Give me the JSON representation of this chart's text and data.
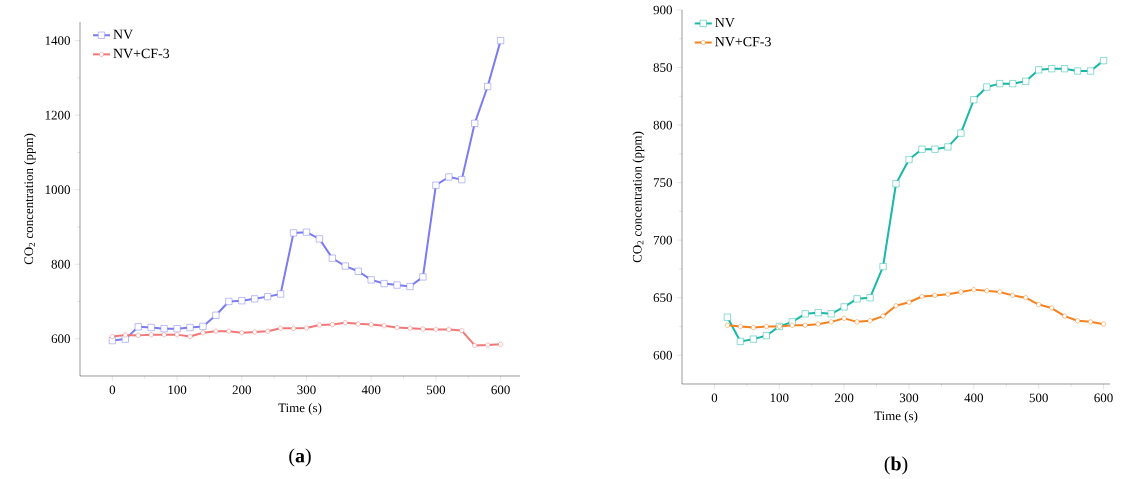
{
  "chart_data": [
    {
      "type": "line",
      "xlabel": "Time (s)",
      "ylabel": "CO$_{2}$ concentration (ppm)",
      "annotations": [
        "(**a**)"
      ],
      "x": [
        0,
        20,
        40,
        60,
        80,
        100,
        120,
        140,
        160,
        180,
        200,
        220,
        240,
        260,
        280,
        300,
        320,
        340,
        360,
        380,
        400,
        420,
        440,
        460,
        480,
        500,
        520,
        540,
        560,
        580,
        600
      ],
      "xlim": [
        -50,
        630
      ],
      "xticks": [
        0,
        100,
        200,
        300,
        400,
        500,
        600
      ],
      "ylim": [
        500,
        1450
      ],
      "yticks": [
        600,
        800,
        1000,
        1200,
        1400
      ],
      "legend": "top left",
      "grid": false,
      "line_style": "solid",
      "series": [
        {
          "name": "NV",
          "color": "#7b7bf2",
          "marker": "square",
          "values": [
            595,
            599,
            632,
            630,
            627,
            627,
            630,
            633,
            663,
            700,
            702,
            707,
            713,
            720,
            884,
            886,
            868,
            816,
            795,
            781,
            758,
            748,
            744,
            740,
            766,
            1012,
            1034,
            1027,
            1178,
            1277,
            1400
          ]
        },
        {
          "name": "NV+CF-3",
          "color": "#f27878",
          "marker": "circle",
          "values": [
            606,
            610,
            609,
            611,
            611,
            611,
            606,
            616,
            620,
            620,
            616,
            618,
            620,
            628,
            628,
            629,
            637,
            638,
            643,
            640,
            638,
            635,
            630,
            628,
            626,
            625,
            625,
            622,
            582,
            583,
            585
          ]
        }
      ]
    },
    {
      "type": "line",
      "xlabel": "Time (s)",
      "ylabel": "CO$_{2}$ concentration (ppm)",
      "annotations": [
        "(**b**)"
      ],
      "x": [
        20,
        40,
        60,
        80,
        100,
        120,
        140,
        160,
        180,
        200,
        220,
        240,
        260,
        280,
        300,
        320,
        340,
        360,
        380,
        400,
        420,
        440,
        460,
        480,
        500,
        520,
        540,
        560,
        580,
        600
      ],
      "xlim": [
        -50,
        610
      ],
      "xticks": [
        0,
        100,
        200,
        300,
        400,
        500,
        600
      ],
      "ylim": [
        575,
        900
      ],
      "yticks": [
        600,
        650,
        700,
        750,
        800,
        850,
        900
      ],
      "legend": "top left",
      "grid": false,
      "line_style": "solid",
      "series": [
        {
          "name": "NV",
          "color": "#1ab8a6",
          "marker": "square",
          "values": [
            633,
            612,
            614,
            617,
            625,
            629,
            636,
            637,
            636,
            642,
            649,
            650,
            677,
            749,
            770,
            779,
            779,
            781,
            793,
            822,
            833,
            836,
            836,
            838,
            848,
            849,
            849,
            847,
            847,
            856
          ]
        },
        {
          "name": "NV+CF-3",
          "color": "#f5821f",
          "marker": "circle",
          "values": [
            626,
            625,
            624,
            625,
            625,
            626,
            626,
            627,
            629,
            632,
            629,
            630,
            634,
            643,
            646,
            651,
            652,
            653,
            655,
            657,
            656,
            655,
            652,
            650,
            644,
            641,
            634,
            630,
            629,
            627
          ]
        }
      ]
    }
  ]
}
